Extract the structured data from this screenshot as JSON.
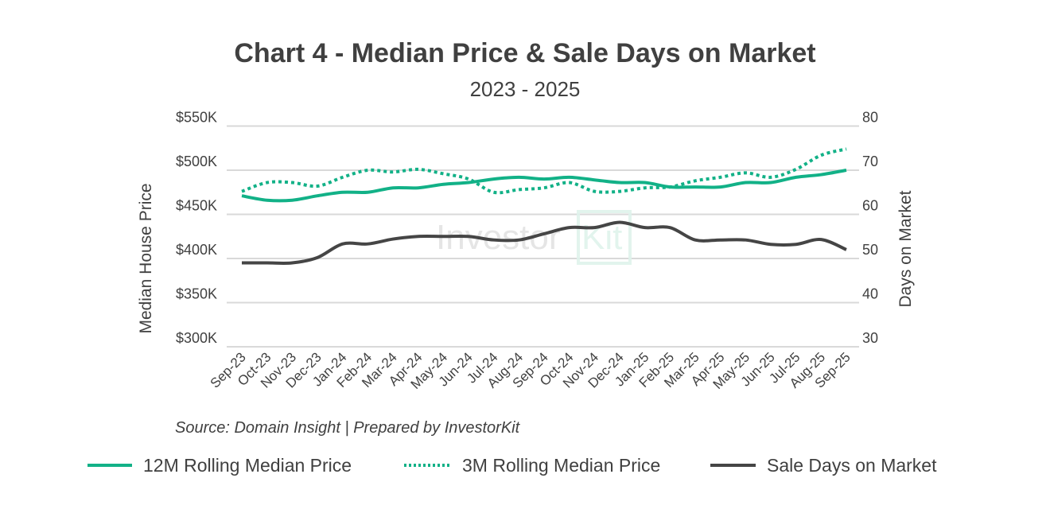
{
  "chart_data": {
    "type": "line",
    "title": "Chart 4 - Median Price & Sale Days on Market",
    "subtitle": "2023 - 2025",
    "ylabel": "Median House Price",
    "y2label": "Days on Market",
    "ylim": [
      300000,
      550000
    ],
    "y2lim": [
      30,
      80
    ],
    "yticks": [
      "$300K",
      "$350K",
      "$400K",
      "$450K",
      "$500K",
      "$550K"
    ],
    "y2ticks": [
      "30",
      "40",
      "50",
      "60",
      "70",
      "80"
    ],
    "grid": true,
    "legend_position": "bottom",
    "categories": [
      "Sep-23",
      "Oct-23",
      "Nov-23",
      "Dec-23",
      "Jan-24",
      "Feb-24",
      "Mar-24",
      "Apr-24",
      "May-24",
      "Jun-24",
      "Jul-24",
      "Aug-24",
      "Sep-24",
      "Oct-24",
      "Nov-24",
      "Dec-24",
      "Jan-25",
      "Feb-25",
      "Mar-25",
      "Apr-25",
      "May-25",
      "Jun-25",
      "Jul-25",
      "Aug-25",
      "Sep-25"
    ],
    "series": [
      {
        "name": "12M Rolling Median Price",
        "axis": "left",
        "style": "solid",
        "color": "#12b187",
        "values": [
          471000,
          466000,
          466000,
          471000,
          475000,
          475000,
          480000,
          480000,
          484000,
          486000,
          490000,
          492000,
          490000,
          492000,
          489000,
          486000,
          486000,
          481000,
          481000,
          481000,
          486000,
          486000,
          492000,
          495000,
          500000
        ]
      },
      {
        "name": "3M Rolling Median Price",
        "axis": "left",
        "style": "dotted",
        "color": "#12b187",
        "values": [
          476000,
          486000,
          486000,
          482000,
          492000,
          500000,
          498000,
          501000,
          496000,
          490000,
          475000,
          478000,
          480000,
          486000,
          476000,
          476000,
          480000,
          481000,
          488000,
          492000,
          497000,
          492000,
          501000,
          517000,
          524000
        ]
      },
      {
        "name": "Sale Days on Market",
        "axis": "right",
        "style": "solid",
        "color": "#454545",
        "values": [
          49,
          49,
          49,
          50.2,
          53.3,
          53.3,
          54.4,
          55,
          55,
          55,
          54.2,
          54.2,
          55.6,
          57,
          57,
          58.2,
          57,
          57,
          54.2,
          54.2,
          54.2,
          53.2,
          53.2,
          54.3,
          52
        ]
      }
    ],
    "source": "Source: Domain Insight | Prepared by InvestorKit"
  },
  "watermark": {
    "text_a": "Invest",
    "text_b": "or",
    "text_c": "Kit"
  }
}
